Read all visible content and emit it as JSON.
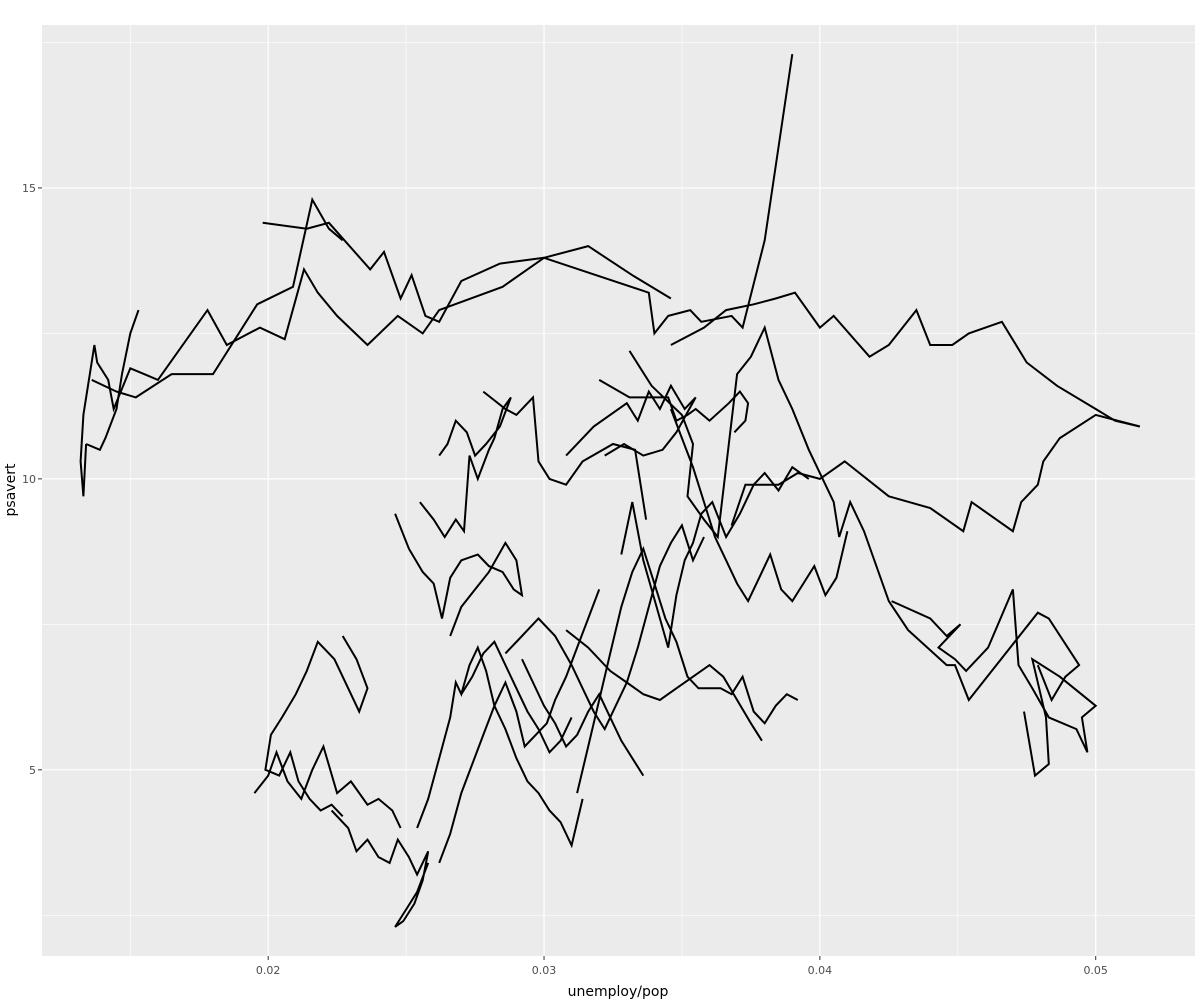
{
  "chart_data": {
    "type": "line",
    "title": "",
    "xlabel": "unemploy/pop",
    "ylabel": "psavert",
    "xlim": [
      0.0118,
      0.0536
    ],
    "ylim": [
      1.8,
      17.8
    ],
    "x_ticks": [
      {
        "value": 0.02,
        "label": "0.02"
      },
      {
        "value": 0.03,
        "label": "0.03"
      },
      {
        "value": 0.04,
        "label": "0.04"
      },
      {
        "value": 0.05,
        "label": "0.05"
      }
    ],
    "y_ticks": [
      {
        "value": 5,
        "label": "5"
      },
      {
        "value": 10,
        "label": "10"
      },
      {
        "value": 15,
        "label": "15"
      }
    ],
    "grid": true,
    "background_color": "#ebebeb",
    "grid_color": "#ffffff",
    "line_color": "#000000",
    "series": [
      {
        "x": [
          0.039,
          0.038,
          0.0372,
          0.0368,
          0.0357,
          0.0353,
          0.0345,
          0.034,
          0.0338,
          0.03,
          0.0285,
          0.0262,
          0.0256,
          0.0247,
          0.0236,
          0.0225,
          0.0218,
          0.0213,
          0.0206,
          0.0197,
          0.0185,
          0.0178,
          0.0166,
          0.016,
          0.0155,
          0.015,
          0.0144,
          0.0142,
          0.0138,
          0.0137,
          0.0133,
          0.0132,
          0.0133,
          0.0134
        ],
        "y": [
          17.3,
          14.1,
          12.6,
          12.8,
          12.7,
          12.9,
          12.8,
          12.5,
          13.2,
          13.8,
          13.3,
          12.9,
          12.5,
          12.8,
          12.3,
          12.8,
          13.2,
          13.6,
          12.4,
          12.6,
          12.3,
          12.9,
          12.1,
          11.7,
          11.8,
          11.9,
          11.2,
          11.7,
          12.0,
          12.3,
          11.1,
          10.3,
          9.7,
          10.6
        ]
      },
      {
        "x": [
          0.0134,
          0.0139,
          0.0141,
          0.0145,
          0.0147,
          0.015,
          0.0153
        ],
        "y": [
          10.6,
          10.5,
          10.7,
          11.2,
          11.8,
          12.5,
          12.9
        ]
      },
      {
        "x": [
          0.0136,
          0.0145,
          0.0152,
          0.0165,
          0.0172,
          0.018,
          0.0196,
          0.0209,
          0.0216,
          0.0222,
          0.0227
        ],
        "y": [
          11.7,
          11.5,
          11.4,
          11.8,
          11.8,
          11.8,
          13.0,
          13.3,
          14.8,
          14.3,
          14.1
        ]
      },
      {
        "x": [
          0.0198,
          0.0214,
          0.0222,
          0.0237,
          0.0242,
          0.0248,
          0.0252,
          0.0257,
          0.0262,
          0.027,
          0.0284,
          0.03,
          0.0316,
          0.0332,
          0.0346
        ],
        "y": [
          14.4,
          14.3,
          14.4,
          13.6,
          13.9,
          13.1,
          13.5,
          12.8,
          12.7,
          13.4,
          13.7,
          13.8,
          14.0,
          13.5,
          13.1
        ]
      },
      {
        "x": [
          0.0346,
          0.0358,
          0.0366,
          0.0376,
          0.0384,
          0.0391,
          0.04,
          0.0405,
          0.0418,
          0.0425,
          0.0435,
          0.044,
          0.0448,
          0.0454,
          0.0466,
          0.0475,
          0.0486,
          0.05,
          0.0507,
          0.0516
        ],
        "y": [
          12.3,
          12.6,
          12.9,
          13.0,
          13.1,
          13.2,
          12.6,
          12.8,
          12.1,
          12.3,
          12.9,
          12.3,
          12.3,
          12.5,
          12.7,
          12.0,
          11.6,
          11.2,
          11.0,
          10.9
        ]
      },
      {
        "x": [
          0.0516,
          0.05,
          0.0487,
          0.0481,
          0.0479,
          0.0473,
          0.047,
          0.0455,
          0.0452,
          0.044,
          0.0425,
          0.0409,
          0.04,
          0.0392,
          0.0385,
          0.0373,
          0.0368
        ],
        "y": [
          10.9,
          11.1,
          10.7,
          10.3,
          9.9,
          9.6,
          9.1,
          9.6,
          9.1,
          9.5,
          9.7,
          10.3,
          10.0,
          10.1,
          9.9,
          9.9,
          9.2
        ]
      },
      {
        "x": [
          0.0331,
          0.0339,
          0.035,
          0.0354,
          0.0352,
          0.0358,
          0.0363,
          0.037,
          0.0375,
          0.038,
          0.0385,
          0.039,
          0.0396,
          0.0405,
          0.0407,
          0.0411,
          0.0416,
          0.0425,
          0.0432,
          0.0446,
          0.0449,
          0.0454,
          0.0479,
          0.0483,
          0.0494,
          0.0489,
          0.0484,
          0.0479
        ],
        "y": [
          12.2,
          11.6,
          11.1,
          10.6,
          9.7,
          9.3,
          9.0,
          11.8,
          12.1,
          12.6,
          11.7,
          11.2,
          10.5,
          9.6,
          9.0,
          9.6,
          9.1,
          7.9,
          7.4,
          6.8,
          6.8,
          6.2,
          7.7,
          7.6,
          6.8,
          6.6,
          6.2,
          6.8
        ]
      },
      {
        "x": [
          0.0426,
          0.044,
          0.0446,
          0.0451,
          0.0443,
          0.0449,
          0.0453,
          0.0461,
          0.047,
          0.0472,
          0.0477,
          0.0483,
          0.0493,
          0.0497,
          0.0495,
          0.05,
          0.0487,
          0.0477,
          0.0482,
          0.0483,
          0.0478,
          0.0474
        ],
        "y": [
          7.9,
          7.6,
          7.3,
          7.5,
          7.1,
          6.9,
          6.7,
          7.1,
          8.1,
          6.8,
          6.4,
          5.9,
          5.7,
          5.3,
          5.9,
          6.1,
          6.6,
          6.9,
          5.9,
          5.1,
          4.9,
          6.0
        ]
      },
      {
        "x": [
          0.032,
          0.0331,
          0.0345,
          0.0348,
          0.0352,
          0.0355,
          0.036,
          0.0367,
          0.0371,
          0.0374,
          0.0373,
          0.0369
        ],
        "y": [
          11.7,
          11.4,
          11.4,
          11.0,
          11.1,
          11.2,
          11.0,
          11.3,
          11.5,
          11.3,
          11.0,
          10.8
        ]
      },
      {
        "x": [
          0.0308,
          0.0318,
          0.033,
          0.0334,
          0.0338,
          0.0342,
          0.0346,
          0.0351,
          0.0355,
          0.0348,
          0.0343,
          0.0336,
          0.0329,
          0.0322
        ],
        "y": [
          10.4,
          10.9,
          11.3,
          11.0,
          11.5,
          11.2,
          11.6,
          11.2,
          11.4,
          10.8,
          10.5,
          10.4,
          10.6,
          10.4
        ]
      },
      {
        "x": [
          0.0278,
          0.0286,
          0.029,
          0.0296,
          0.0298,
          0.0302,
          0.0308,
          0.0314,
          0.0325,
          0.0333,
          0.0337
        ],
        "y": [
          11.5,
          11.2,
          11.1,
          11.4,
          10.3,
          10.0,
          9.9,
          10.3,
          10.6,
          10.5,
          9.3
        ]
      },
      {
        "x": [
          0.0255,
          0.026,
          0.0264,
          0.0268,
          0.0271,
          0.0273,
          0.0276,
          0.028,
          0.0282,
          0.0285,
          0.0288,
          0.0284,
          0.0279,
          0.0275,
          0.0272,
          0.0268,
          0.0265,
          0.0262
        ],
        "y": [
          9.6,
          9.3,
          9.0,
          9.3,
          9.1,
          10.4,
          10.0,
          10.5,
          10.7,
          11.2,
          11.4,
          10.9,
          10.6,
          10.4,
          10.8,
          11.0,
          10.6,
          10.4
        ]
      },
      {
        "x": [
          0.0246,
          0.0251,
          0.0256,
          0.026,
          0.0263,
          0.0266,
          0.027,
          0.0276,
          0.028,
          0.0285,
          0.0289,
          0.0292,
          0.029,
          0.0286,
          0.028,
          0.0275,
          0.027,
          0.0266
        ],
        "y": [
          9.4,
          8.8,
          8.4,
          8.2,
          7.6,
          8.3,
          8.6,
          8.7,
          8.5,
          8.4,
          8.1,
          8.0,
          8.6,
          8.9,
          8.4,
          8.1,
          7.8,
          7.3
        ]
      },
      {
        "x": [
          0.0227,
          0.0232,
          0.0236,
          0.0233,
          0.0229,
          0.0224,
          0.0218,
          0.0214,
          0.021,
          0.0205,
          0.0201,
          0.0199,
          0.0204,
          0.0208,
          0.0211,
          0.0215,
          0.0219,
          0.0223,
          0.0227
        ],
        "y": [
          7.3,
          6.9,
          6.4,
          6.0,
          6.4,
          6.9,
          7.2,
          6.7,
          6.3,
          5.9,
          5.6,
          5.0,
          4.9,
          5.3,
          4.8,
          4.5,
          4.3,
          4.4,
          4.2
        ]
      },
      {
        "x": [
          0.0195,
          0.02,
          0.0203,
          0.0207,
          0.0212,
          0.0216,
          0.022,
          0.0225,
          0.023,
          0.0236,
          0.024,
          0.0245,
          0.0248
        ],
        "y": [
          4.6,
          4.9,
          5.3,
          4.8,
          4.5,
          5.0,
          5.4,
          4.6,
          4.8,
          4.4,
          4.5,
          4.3,
          4.0
        ]
      },
      {
        "x": [
          0.0223,
          0.0229,
          0.0232,
          0.0236,
          0.024,
          0.0244,
          0.0247,
          0.0251,
          0.0254,
          0.0258,
          0.0256,
          0.0253,
          0.0249,
          0.0246,
          0.025,
          0.0254,
          0.0258
        ],
        "y": [
          4.3,
          4.0,
          3.6,
          3.8,
          3.5,
          3.4,
          3.8,
          3.5,
          3.2,
          3.6,
          3.1,
          2.7,
          2.4,
          2.3,
          2.6,
          2.9,
          3.4
        ]
      },
      {
        "x": [
          0.0254,
          0.0258,
          0.0262,
          0.0266,
          0.0268,
          0.027,
          0.0273,
          0.0276,
          0.0279,
          0.0282,
          0.0286,
          0.029,
          0.0294,
          0.0298,
          0.0302,
          0.0306,
          0.031,
          0.0314
        ],
        "y": [
          4.0,
          4.5,
          5.2,
          5.9,
          6.5,
          6.3,
          6.8,
          7.1,
          6.7,
          6.1,
          5.7,
          5.2,
          4.8,
          4.6,
          4.3,
          4.1,
          3.7,
          4.5
        ]
      },
      {
        "x": [
          0.0262,
          0.0266,
          0.027,
          0.0274,
          0.0278,
          0.0282,
          0.0286,
          0.029,
          0.0293,
          0.0297,
          0.0301,
          0.0304,
          0.0308,
          0.0312,
          0.0316,
          0.032
        ],
        "y": [
          3.4,
          3.9,
          4.6,
          5.1,
          5.6,
          6.1,
          6.5,
          6.0,
          5.4,
          5.6,
          5.8,
          6.2,
          6.6,
          7.1,
          7.6,
          8.1
        ]
      },
      {
        "x": [
          0.0312,
          0.0316,
          0.032,
          0.0324,
          0.0328,
          0.0332,
          0.0336,
          0.034,
          0.0344,
          0.0348,
          0.0352,
          0.0356,
          0.036,
          0.0364,
          0.0368,
          0.0372,
          0.0376,
          0.038,
          0.0384,
          0.0388,
          0.0392
        ],
        "y": [
          4.6,
          5.4,
          6.2,
          7.0,
          7.8,
          8.4,
          8.8,
          8.2,
          7.6,
          7.2,
          6.6,
          6.4,
          6.4,
          6.4,
          6.3,
          6.6,
          6.0,
          5.8,
          6.1,
          6.3,
          6.2
        ]
      },
      {
        "x": [
          0.0286,
          0.0292,
          0.0298,
          0.0304,
          0.031,
          0.0314,
          0.0318,
          0.0322,
          0.0326,
          0.033,
          0.0334,
          0.0338,
          0.0342,
          0.0346,
          0.035,
          0.0354,
          0.0358
        ],
        "y": [
          7.0,
          7.3,
          7.6,
          7.3,
          6.8,
          6.4,
          6.0,
          5.7,
          6.1,
          6.5,
          7.1,
          7.8,
          8.5,
          8.9,
          9.2,
          8.6,
          9.0
        ]
      },
      {
        "x": [
          0.0328,
          0.0332,
          0.0336,
          0.0339,
          0.0342,
          0.0345,
          0.0348,
          0.0351,
          0.0354,
          0.0357,
          0.0361,
          0.0366,
          0.0371,
          0.0376,
          0.038,
          0.0385,
          0.039,
          0.0396
        ],
        "y": [
          8.7,
          9.6,
          8.6,
          8.1,
          7.6,
          7.1,
          8.0,
          8.6,
          8.9,
          9.4,
          9.6,
          9.0,
          9.4,
          9.9,
          10.1,
          9.8,
          10.2,
          10.0
        ]
      },
      {
        "x": [
          0.0346,
          0.035,
          0.0354,
          0.0358,
          0.0362,
          0.0366,
          0.037,
          0.0374,
          0.0378,
          0.0382,
          0.0386,
          0.039,
          0.0394,
          0.0398,
          0.0402,
          0.0406,
          0.041
        ],
        "y": [
          11.2,
          10.7,
          10.2,
          9.6,
          9.0,
          8.6,
          8.2,
          7.9,
          8.3,
          8.7,
          8.1,
          7.9,
          8.2,
          8.5,
          8.0,
          8.3,
          9.1
        ]
      },
      {
        "x": [
          0.0308,
          0.0316,
          0.0324,
          0.033,
          0.0336,
          0.0342,
          0.0348,
          0.0354,
          0.036,
          0.0365,
          0.037,
          0.0375,
          0.0379
        ],
        "y": [
          7.4,
          7.1,
          6.7,
          6.5,
          6.3,
          6.2,
          6.4,
          6.6,
          6.8,
          6.6,
          6.2,
          5.8,
          5.5
        ]
      },
      {
        "x": [
          0.0292,
          0.0296,
          0.03,
          0.0304,
          0.0308,
          0.0312,
          0.0316,
          0.032,
          0.0324,
          0.0328,
          0.0332,
          0.0336
        ],
        "y": [
          6.9,
          6.5,
          6.1,
          5.8,
          5.4,
          5.6,
          6.0,
          6.3,
          5.9,
          5.5,
          5.2,
          4.9
        ]
      },
      {
        "x": [
          0.027,
          0.0274,
          0.0278,
          0.0282,
          0.0286,
          0.029,
          0.0294,
          0.0298,
          0.0302,
          0.0306,
          0.031
        ],
        "y": [
          6.3,
          6.6,
          7.0,
          7.2,
          6.8,
          6.4,
          6.0,
          5.7,
          5.3,
          5.5,
          5.9
        ]
      }
    ]
  }
}
